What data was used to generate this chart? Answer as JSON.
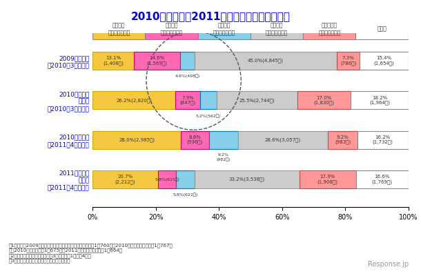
{
  "title": "2010年度業績、2011年度業績見通しについて",
  "title_color": "#0000cc",
  "categories": [
    "2009年度業績\n（2010年3月調査）",
    "2010年度業績\n見通し\n（2010年3月調査）",
    "2010年度業績\n（2011年4月調査）",
    "2011年度業績\n見通し\n（2011年4月調査）"
  ],
  "col_labels": [
    "増収増益\n（見込み含む）",
    "増収減益\n（見込み含む）",
    "減収増益\n（見込み含む）",
    "減収減益\n（見込み含む）",
    "前年度並み\n（見込み含む）",
    "その他"
  ],
  "data": [
    [
      13.1,
      14.6,
      4.6,
      45.0,
      7.3,
      15.4
    ],
    [
      26.2,
      7.9,
      5.2,
      25.5,
      17.0,
      18.2
    ],
    [
      28.0,
      8.8,
      9.2,
      28.6,
      9.2,
      16.2
    ],
    [
      20.7,
      5.8,
      5.8,
      33.2,
      17.9,
      16.6
    ]
  ],
  "labels": [
    [
      "13.1%\n(1,408社)",
      "14.6%\n(1,569社)",
      "4.6%(498社)",
      "45.0%(4,845社)",
      "7.3%\n(786社)",
      "15.4%\n(1,654社)"
    ],
    [
      "26.2%(2,820社)",
      "7.9%\n(847社)",
      "5.2%(562社)",
      "25.5%(2,744社)",
      "17.0%\n(1,830社)",
      "18.2%\n(1,964社)"
    ],
    [
      "28.0%(2,985社)",
      "8.8%\n(936社)",
      "9.2%\n(982社)",
      "28.6%(3,057社)",
      "9.2%\n(983社)",
      "16.2%\n(1,732社)"
    ],
    [
      "20.7%\n(2,212社)",
      "5.8%(615社)",
      "5.8%(622社)",
      "33.2%(3,538社)",
      "17.9%\n(1,908社)",
      "16.6%\n(1,769社)"
    ]
  ],
  "colors": [
    "#f5c842",
    "#ff69b4",
    "#87ceeb",
    "#cccccc",
    "#ff9999",
    "#ffffff"
  ],
  "bar_edge_colors": [
    "#ccaa00",
    "#cc0066",
    "#0077bb",
    "#999999",
    "#cc4444",
    "#888888"
  ],
  "notes": [
    "注1：母数は2009年度業績が「分からない／不回答」を除く1万760社、2010年度業績見通しが同1万767社",
    "　　2010年度業績が同1万675社、2011年度業績見通しが同1万664社",
    "注2：「その他」の内訳詳細は、3ページ脚注1〜脚注4参照",
    "注3：業績は、売り上げおよび経常利益ベース"
  ],
  "watermark": "Response.jp"
}
